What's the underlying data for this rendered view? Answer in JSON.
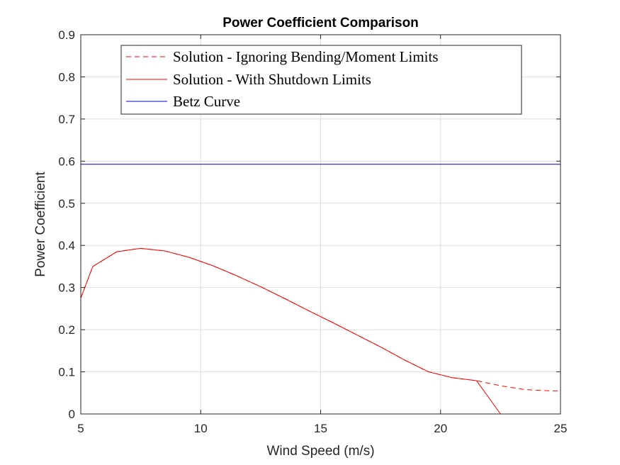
{
  "chart_data": {
    "type": "line",
    "title": "Power Coefficient Comparison",
    "xlabel": "Wind Speed (m/s)",
    "ylabel": "Power Coefficient",
    "xlim": [
      5,
      25
    ],
    "ylim": [
      0,
      0.9
    ],
    "xticks": [
      5,
      10,
      15,
      20,
      25
    ],
    "xtick_labels": [
      "5",
      "10",
      "15",
      "20",
      "25"
    ],
    "yticks": [
      0,
      0.1,
      0.2,
      0.3,
      0.4,
      0.5,
      0.6,
      0.7,
      0.8,
      0.9
    ],
    "ytick_labels": [
      "0",
      "0.1",
      "0.2",
      "0.3",
      "0.4",
      "0.5",
      "0.6",
      "0.7",
      "0.8",
      "0.9"
    ],
    "grid": true,
    "legend_position": "top",
    "series": [
      {
        "name": "Solution - Ignoring Bending/Moment Limits",
        "color": "#ff0000",
        "style": "dashed",
        "x": [
          5,
          5.5,
          6.5,
          7.5,
          8.5,
          9.5,
          10.5,
          11.5,
          12.5,
          13.5,
          14.5,
          15.5,
          16.5,
          17.5,
          18.5,
          19.5,
          20.5,
          21.5,
          22.5,
          23.5,
          24.5,
          25
        ],
        "y": [
          0.275,
          0.35,
          0.385,
          0.393,
          0.387,
          0.372,
          0.352,
          0.328,
          0.302,
          0.274,
          0.245,
          0.217,
          0.188,
          0.159,
          0.128,
          0.1,
          0.086,
          0.079,
          0.067,
          0.058,
          0.055,
          0.054
        ]
      },
      {
        "name": "Solution - With Shutdown Limits",
        "color": "#ff0000",
        "style": "solid",
        "x": [
          5,
          5.5,
          6.5,
          7.5,
          8.5,
          9.5,
          10.5,
          11.5,
          12.5,
          13.5,
          14.5,
          15.5,
          16.5,
          17.5,
          18.5,
          19.5,
          20.5,
          21.5,
          22.5,
          23.5,
          24.5,
          25
        ],
        "y": [
          0.275,
          0.35,
          0.385,
          0.393,
          0.387,
          0.372,
          0.352,
          0.328,
          0.302,
          0.274,
          0.245,
          0.217,
          0.188,
          0.159,
          0.128,
          0.1,
          0.086,
          0.079,
          0,
          0,
          0,
          0
        ]
      },
      {
        "name": "Betz Curve",
        "color": "#0000cc",
        "style": "solid",
        "x": [
          5,
          25
        ],
        "y": [
          0.5926,
          0.5926
        ]
      }
    ]
  }
}
